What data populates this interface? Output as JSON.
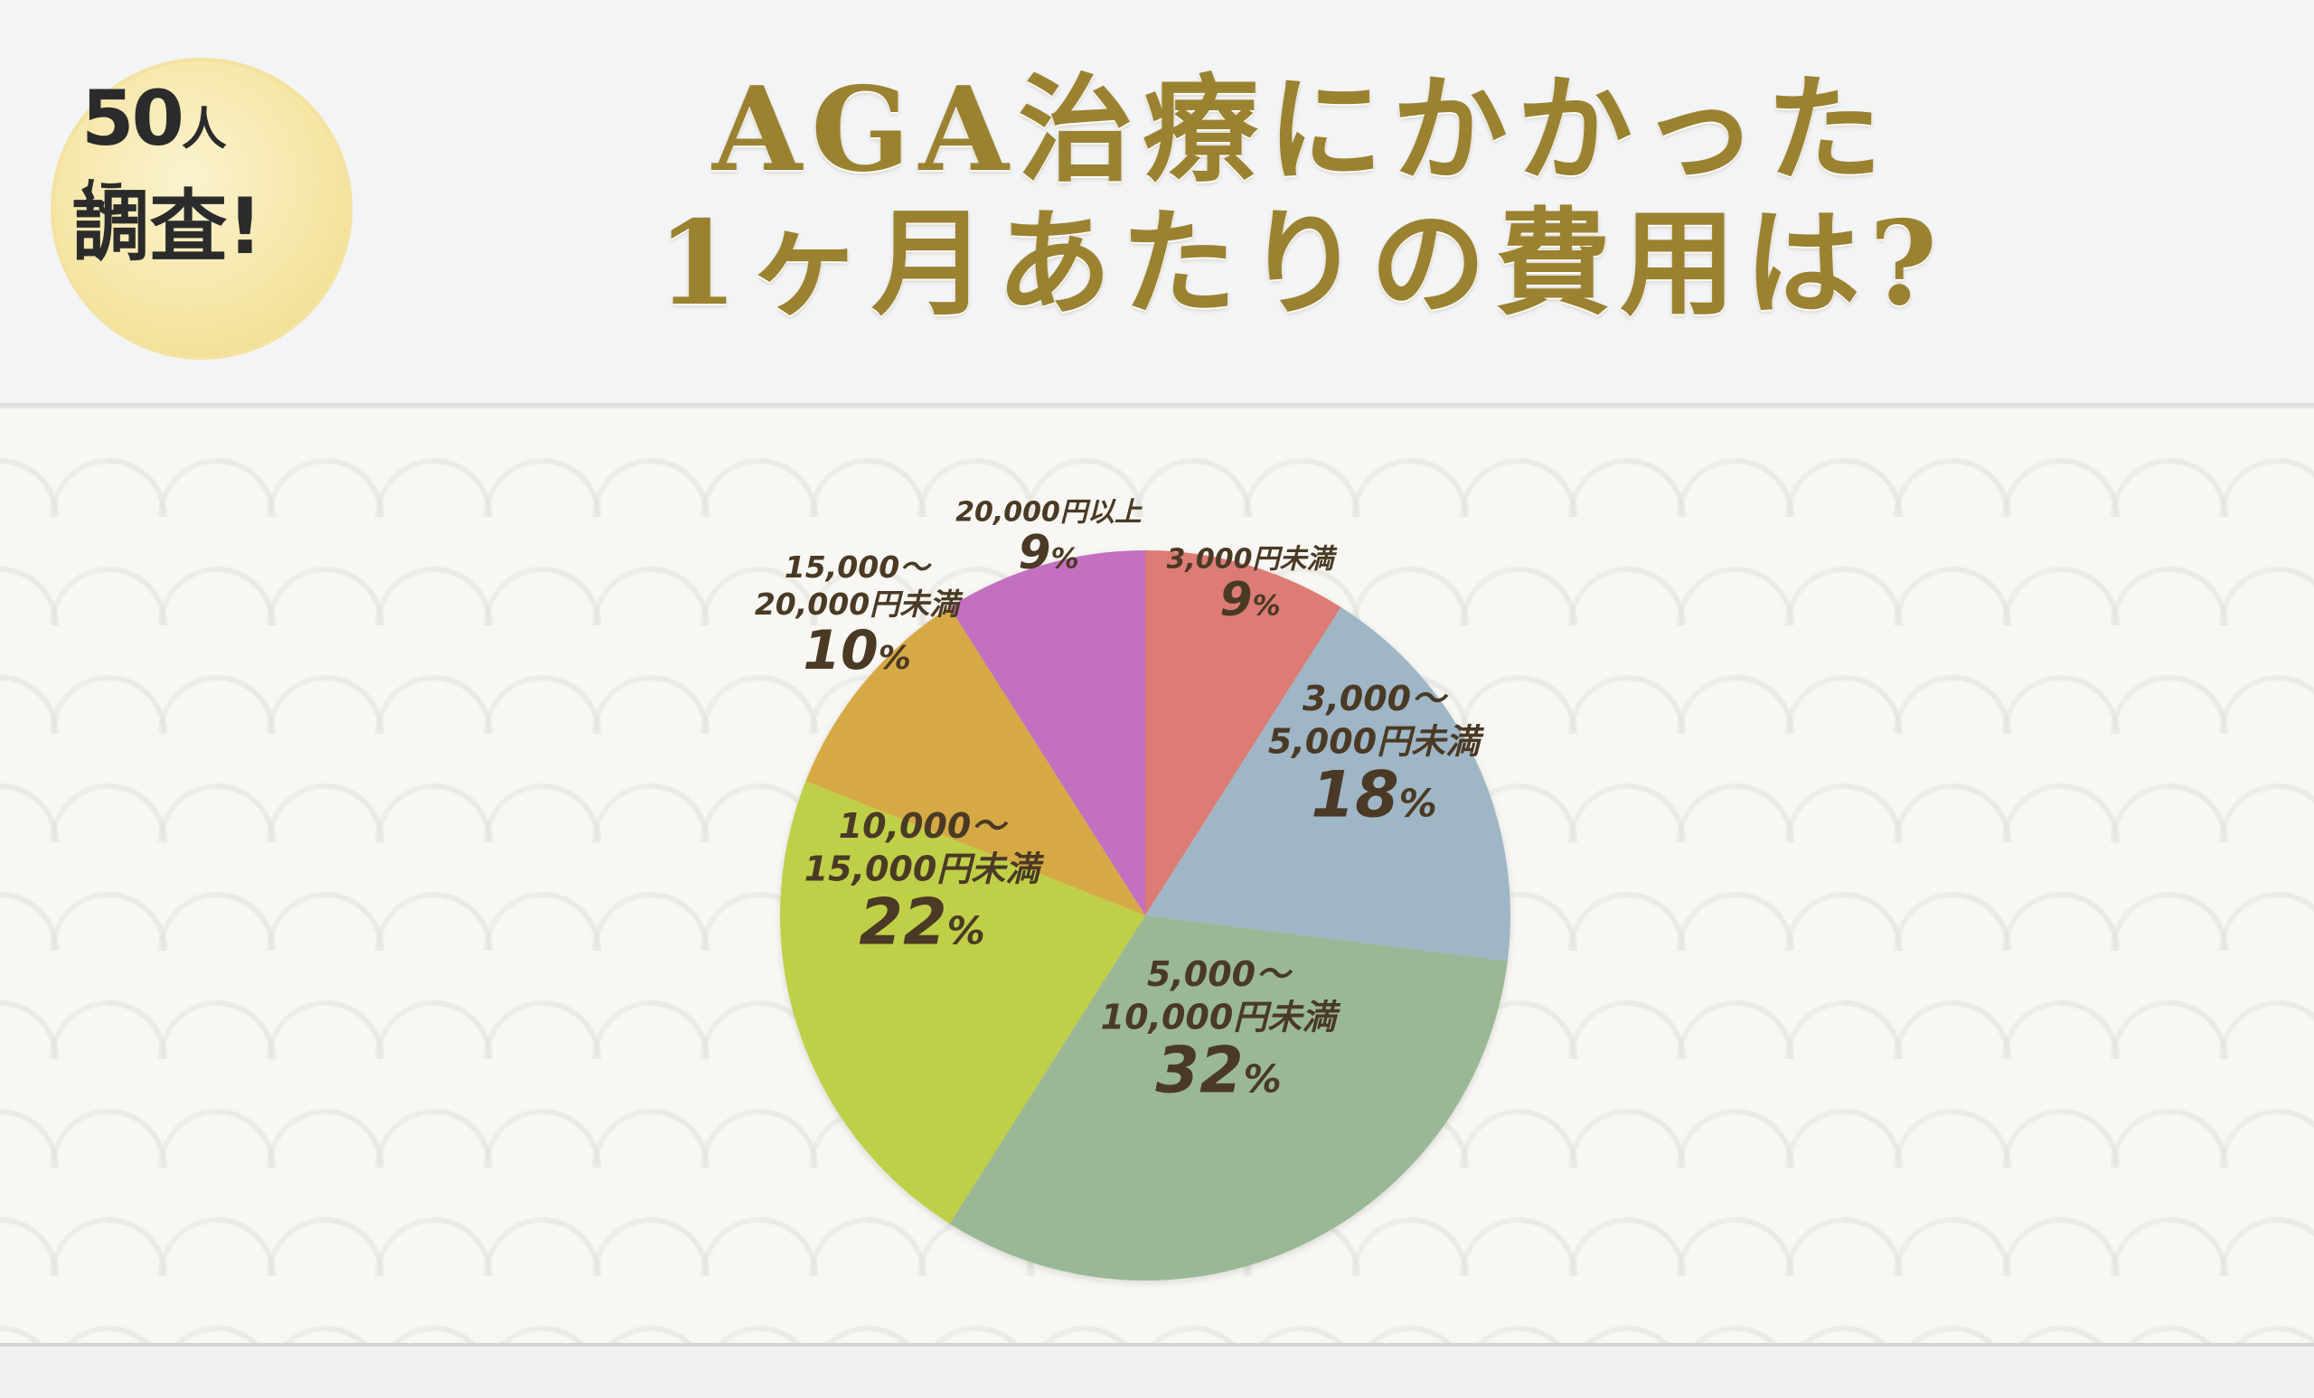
{
  "badge": {
    "line1_number": "50",
    "line1_suffix": "人に",
    "line2": "調査!"
  },
  "header": {
    "title_line1": "AGA治療にかかった",
    "title_line2": "1ヶ月あたりの費用は?"
  },
  "colors": {
    "title": "#9b8231",
    "slices": [
      "#dc7b75",
      "#9fb6c6",
      "#9ab895",
      "#bfcf47",
      "#d6a944",
      "#c370c0"
    ]
  },
  "chart_data": {
    "type": "pie",
    "unit": "%",
    "slices": [
      {
        "label": "3,000円未満",
        "value": 9
      },
      {
        "label": "3,000〜5,000円未満",
        "value": 18
      },
      {
        "label": "5,000〜10,000円未満",
        "value": 32
      },
      {
        "label": "10,000〜15,000円未満",
        "value": 22
      },
      {
        "label": "15,000〜20,000円未満",
        "value": 10
      },
      {
        "label": "20,000円以上",
        "value": 9
      }
    ],
    "label_lines": [
      [
        "3,000円未満"
      ],
      [
        "3,000〜",
        "5,000円未満"
      ],
      [
        "5,000〜",
        "10,000円未満"
      ],
      [
        "10,000〜",
        "15,000円未満"
      ],
      [
        "15,000〜",
        "20,000円未満"
      ],
      [
        "20,000円以上"
      ]
    ],
    "start": "top",
    "direction": "clockwise"
  }
}
